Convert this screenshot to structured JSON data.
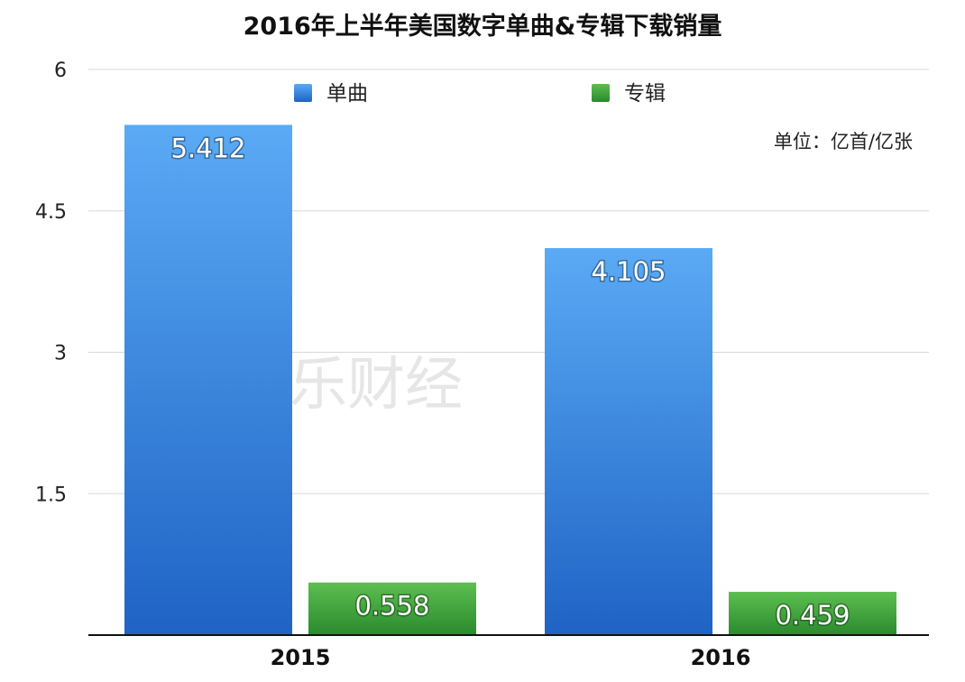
{
  "chart_data": {
    "type": "bar",
    "title": "2016年上半年美国数字单曲&专辑下载销量",
    "categories": [
      "2015",
      "2016"
    ],
    "series": [
      {
        "name": "单曲",
        "values": [
          5.412,
          4.105
        ],
        "labels": [
          "5.412",
          "4.105"
        ],
        "color": "#3f8be0"
      },
      {
        "name": "专辑",
        "values": [
          0.558,
          0.459
        ],
        "labels": [
          "0.558",
          "0.459"
        ],
        "color": "#3b9a3b"
      }
    ],
    "yticks": [
      "1.5",
      "3",
      "4.5",
      "6"
    ],
    "ylim": [
      0,
      6
    ],
    "grid": true,
    "legend_position": "top-center",
    "unit_note": "单位：亿首/亿张",
    "watermark": "音乐财经"
  }
}
